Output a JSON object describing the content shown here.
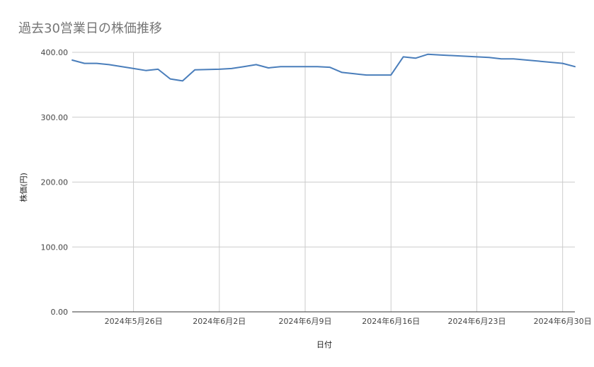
{
  "chart_data": {
    "type": "line",
    "title": "過去30営業日の株価推移",
    "xlabel": "日付",
    "ylabel": "株価(円)",
    "ylim": [
      0,
      400
    ],
    "y_ticks": [
      "0.00",
      "100.00",
      "200.00",
      "300.00",
      "400.00"
    ],
    "y_tick_values": [
      0,
      100,
      200,
      300,
      400
    ],
    "x_tick_labels": [
      "2024年5月26日",
      "2024年6月2日",
      "2024年6月9日",
      "2024年6月16日",
      "2024年6月23日",
      "2024年6月30日"
    ],
    "x_tick_dates": [
      "2024-05-26",
      "2024-06-02",
      "2024-06-09",
      "2024-06-16",
      "2024-06-23",
      "2024-06-30"
    ],
    "xlim": [
      "2024-05-21",
      "2024-07-01"
    ],
    "grid": true,
    "legend": "none",
    "series": [
      {
        "color": "#4a7ebb",
        "x": [
          "2024-05-21",
          "2024-05-22",
          "2024-05-23",
          "2024-05-24",
          "2024-05-26",
          "2024-05-27",
          "2024-05-28",
          "2024-05-29",
          "2024-05-30",
          "2024-05-31",
          "2024-06-02",
          "2024-06-03",
          "2024-06-04",
          "2024-06-05",
          "2024-06-06",
          "2024-06-07",
          "2024-06-09",
          "2024-06-10",
          "2024-06-11",
          "2024-06-12",
          "2024-06-13",
          "2024-06-14",
          "2024-06-16",
          "2024-06-17",
          "2024-06-18",
          "2024-06-19",
          "2024-06-20",
          "2024-06-23",
          "2024-06-24",
          "2024-06-25",
          "2024-06-26",
          "2024-06-30",
          "2024-07-01"
        ],
        "y": [
          388,
          383,
          383,
          381,
          375,
          372,
          374,
          359,
          356,
          373,
          374,
          375,
          378,
          381,
          376,
          378,
          378,
          378,
          377,
          369,
          367,
          365,
          365,
          393,
          391,
          397,
          396,
          393,
          392,
          390,
          390,
          383,
          378
        ]
      }
    ]
  }
}
